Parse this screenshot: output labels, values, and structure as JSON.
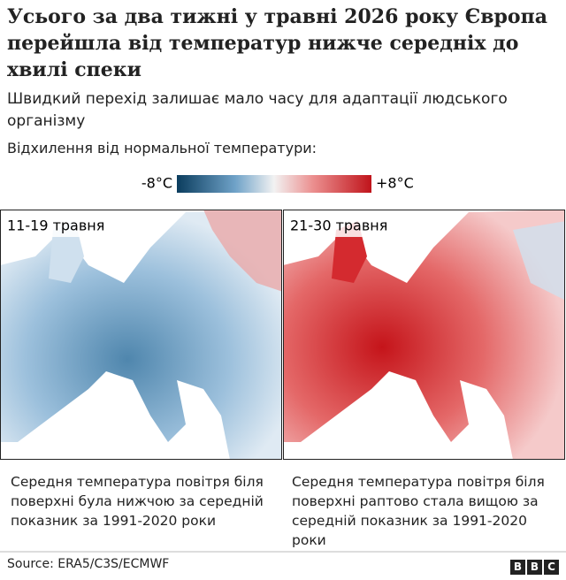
{
  "header": {
    "title": "Усього за два тижні у травні 2026 року Європа перейшла від температур нижче середніх до хвилі спеки",
    "subtitle": "Швидкий перехід залишає мало часу для адаптації людського організму"
  },
  "legend": {
    "label": "Відхилення від нормальної температури:",
    "min_label": "-8°C",
    "max_label": "+8°C"
  },
  "panels": [
    {
      "label": "11-19 травня",
      "caption": "Середня температура повітря біля поверхні була нижчою за середній показник за 1991-2020 роки"
    },
    {
      "label": "21-30 травня",
      "caption": "Середня температура повітря біля поверхні раптово стала вищою за середній показник за 1991-2020 роки"
    }
  ],
  "footer": {
    "source": "Source: ERA5/C3S/ECMWF",
    "logo": "BBC"
  }
}
